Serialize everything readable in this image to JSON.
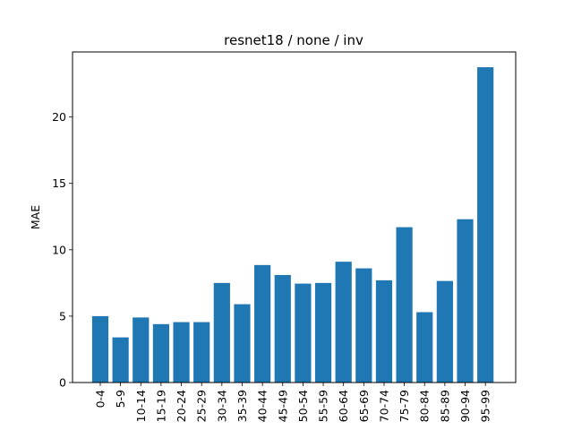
{
  "chart_data": {
    "type": "bar",
    "title": "resnet18 / none / inv",
    "xlabel": "",
    "ylabel": "MAE",
    "ylim": [
      0,
      24.9
    ],
    "yticks": [
      0,
      5,
      10,
      15,
      20
    ],
    "bar_color": "#1f77b4",
    "grid": false,
    "categories": [
      "0-4",
      "5-9",
      "10-14",
      "15-19",
      "20-24",
      "25-29",
      "30-34",
      "35-39",
      "40-44",
      "45-49",
      "50-54",
      "55-59",
      "60-64",
      "65-69",
      "70-74",
      "75-79",
      "80-84",
      "85-89",
      "90-94",
      "95-99"
    ],
    "values": [
      5.0,
      3.4,
      4.9,
      4.4,
      4.55,
      4.55,
      7.5,
      5.9,
      8.85,
      8.1,
      7.45,
      7.5,
      9.1,
      8.6,
      7.7,
      11.7,
      5.3,
      7.65,
      12.3,
      23.75
    ]
  }
}
